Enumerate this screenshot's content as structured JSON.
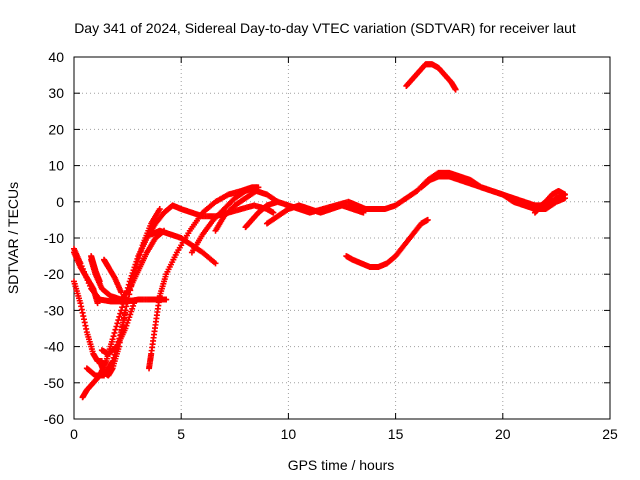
{
  "chart_data": {
    "type": "scatter",
    "title": "Day 341 of 2024, Sidereal Day-to-day VTEC variation (SDTVAR) for receiver laut",
    "xlabel": "GPS time / hours",
    "ylabel": "SDTVAR / TECUs",
    "xlim": [
      0,
      25
    ],
    "ylim": [
      -60,
      40
    ],
    "xticks": [
      0,
      5,
      10,
      15,
      20,
      25
    ],
    "yticks": [
      -60,
      -50,
      -40,
      -30,
      -20,
      -10,
      0,
      10,
      20,
      30,
      40
    ],
    "grid": true,
    "marker": "plus",
    "color": "#ff0000",
    "series": [
      {
        "name": "arc-1",
        "x": [
          0.0,
          0.3,
          0.8,
          1.2,
          1.7,
          2.1,
          2.5,
          3.0,
          3.6,
          4.0,
          4.3
        ],
        "y": [
          -13,
          -17,
          -24,
          -27,
          -27.5,
          -27.5,
          -27.5,
          -27,
          -27,
          -27,
          -27
        ]
      },
      {
        "name": "arc-2",
        "x": [
          0.0,
          0.3,
          0.6,
          0.9,
          1.1,
          1.3
        ],
        "y": [
          -22,
          -28,
          -36,
          -42,
          -44,
          -44
        ]
      },
      {
        "name": "arc-3",
        "x": [
          0.0,
          0.3,
          0.6,
          0.9,
          1.1
        ],
        "y": [
          -14,
          -18,
          -21,
          -24,
          -28
        ]
      },
      {
        "name": "arc-4",
        "x": [
          0.4,
          0.6,
          0.9,
          1.2,
          1.5,
          1.8,
          2.2,
          2.6,
          3.0,
          3.4,
          3.8,
          4.2,
          4.6,
          5.0,
          5.5,
          6.0,
          6.6,
          7.2,
          7.8,
          8.4,
          9.0,
          9.3
        ],
        "y": [
          -54,
          -52,
          -50,
          -48,
          -44,
          -38,
          -30,
          -22,
          -15,
          -10,
          -6,
          -3,
          -1,
          -2,
          -3,
          -4,
          -4,
          -3,
          -2,
          -1,
          -2,
          -3
        ]
      },
      {
        "name": "arc-5",
        "x": [
          1.2,
          1.4,
          1.6,
          1.8,
          2.1,
          2.4,
          2.8,
          3.2,
          3.6,
          4.0
        ],
        "y": [
          -44,
          -47,
          -48,
          -46,
          -40,
          -30,
          -20,
          -12,
          -6,
          -2
        ]
      },
      {
        "name": "arc-6",
        "x": [
          0.6,
          1.0,
          1.4,
          1.8,
          2.2,
          2.4
        ],
        "y": [
          -46,
          -48,
          -48,
          -44,
          -36,
          -30
        ]
      },
      {
        "name": "arc-7",
        "x": [
          1.3,
          1.6,
          2.0,
          2.4,
          2.8
        ],
        "y": [
          -41,
          -42,
          -40,
          -35,
          -28
        ]
      },
      {
        "name": "arc-8",
        "x": [
          0.8,
          1.0,
          1.3,
          1.7,
          2.2,
          2.6,
          3.0,
          3.4,
          3.8,
          4.2
        ],
        "y": [
          -16,
          -20,
          -24,
          -26,
          -27,
          -24,
          -19,
          -14,
          -10,
          -8
        ]
      },
      {
        "name": "arc-9",
        "x": [
          0.8,
          0.9,
          1.0,
          1.2
        ],
        "y": [
          -15,
          -17,
          -19,
          -22
        ]
      },
      {
        "name": "arc-10",
        "x": [
          1.4,
          1.6,
          1.9,
          2.2
        ],
        "y": [
          -16,
          -18,
          -21,
          -25
        ]
      },
      {
        "name": "arc-11",
        "x": [
          3.5,
          3.6,
          3.8,
          4.0,
          4.3,
          4.8,
          5.4,
          6.0,
          6.6,
          7.2,
          7.8,
          8.3,
          8.6
        ],
        "y": [
          -46,
          -42,
          -34,
          -26,
          -20,
          -14,
          -8,
          -3,
          0,
          2,
          3,
          4,
          4
        ]
      },
      {
        "name": "arc-12",
        "x": [
          3.6,
          4.0,
          4.5,
          5.0,
          5.5,
          6.0,
          6.6
        ],
        "y": [
          -9,
          -8,
          -9,
          -10,
          -12,
          -14,
          -17
        ]
      },
      {
        "name": "arc-13",
        "x": [
          5.5,
          6.0,
          6.5,
          7.0,
          7.5,
          8.0,
          8.5
        ],
        "y": [
          -14,
          -9,
          -5,
          -2,
          1,
          3,
          4
        ]
      },
      {
        "name": "arc-14",
        "x": [
          6.6,
          7.0,
          7.5,
          8.0,
          8.5,
          9.0,
          9.5
        ],
        "y": [
          -8,
          -4,
          -1,
          1,
          3,
          2,
          0
        ]
      },
      {
        "name": "arc-15",
        "x": [
          8.0,
          8.3,
          8.6,
          9.0,
          9.5,
          10.0,
          10.5,
          11.0,
          11.6,
          12.2,
          12.8,
          13.2,
          13.6,
          14.0
        ],
        "y": [
          -7,
          -5,
          -3,
          -1,
          0,
          -1,
          -2,
          -3,
          -2,
          -1,
          0,
          -1,
          -2,
          -2
        ]
      },
      {
        "name": "arc-16",
        "x": [
          9.0,
          9.5,
          10.0,
          10.5,
          11.0,
          11.5,
          12.0,
          12.5,
          13.0,
          13.5
        ],
        "y": [
          -6,
          -4,
          -2,
          -1,
          -2,
          -3,
          -2,
          -1,
          -2,
          -3
        ]
      },
      {
        "name": "arc-17",
        "x": [
          12.7,
          13.0,
          13.4,
          13.8,
          14.2,
          14.6,
          15.0,
          15.4,
          15.8,
          16.2,
          16.5
        ],
        "y": [
          -15,
          -16,
          -17,
          -18,
          -18,
          -17,
          -15,
          -12,
          -9,
          -6,
          -5
        ]
      },
      {
        "name": "arc-18",
        "x": [
          14.0,
          14.5,
          15.0,
          15.5,
          16.0,
          16.5,
          17.0,
          17.5,
          18.0,
          18.5,
          19.0,
          19.5,
          20.0,
          20.5,
          21.0,
          21.5,
          22.0,
          22.5,
          22.9
        ],
        "y": [
          -2,
          -2,
          -1,
          1,
          3,
          6,
          8,
          8,
          7,
          6,
          4,
          3,
          2,
          1,
          0,
          -1,
          -1,
          1,
          2
        ]
      },
      {
        "name": "arc-19",
        "x": [
          16.2,
          16.6,
          17.0,
          17.5,
          18.0,
          18.5,
          19.0,
          19.5,
          20.0,
          20.5,
          21.0,
          21.5,
          22.0,
          22.5,
          22.9
        ],
        "y": [
          4,
          6,
          7,
          7,
          6,
          5,
          4,
          3,
          2,
          0,
          -1,
          -2,
          -2,
          0,
          1
        ]
      },
      {
        "name": "arc-20",
        "x": [
          15.5,
          15.8,
          16.1,
          16.4,
          16.7,
          17.0,
          17.3,
          17.6,
          17.8
        ],
        "y": [
          32,
          34,
          36,
          38,
          38,
          37,
          35,
          33,
          31
        ]
      },
      {
        "name": "arc-21",
        "x": [
          21.5,
          21.8,
          22.0,
          22.3,
          22.6,
          22.9
        ],
        "y": [
          -3,
          -1,
          0,
          2,
          3,
          2
        ]
      }
    ]
  }
}
